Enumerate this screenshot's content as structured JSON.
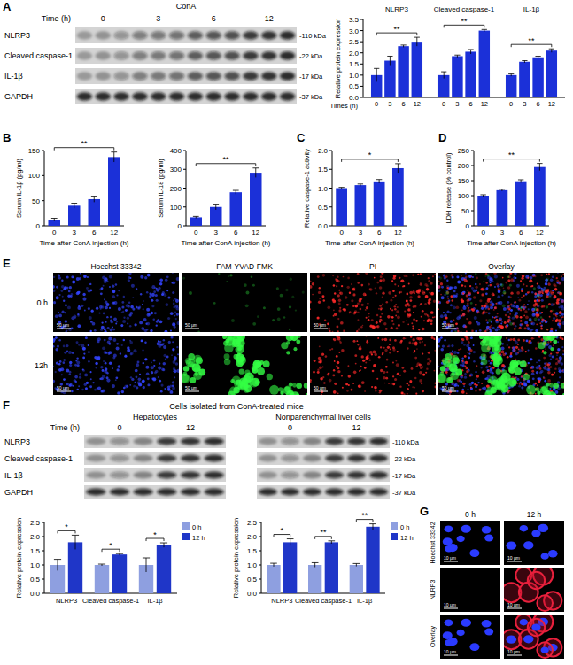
{
  "chart_data": [
    {
      "type": "bar",
      "panel": "A",
      "y_label": "Relative protein expression",
      "x_label": "Times (h)",
      "categories": [
        "NLRP3",
        "Cleaved caspase-1",
        "IL-1β"
      ],
      "series": [
        {
          "name": "0",
          "color": "#1b30d8",
          "values": [
            1.0,
            1.0,
            1.0
          ],
          "errors": [
            0.3,
            0.15,
            0.05
          ]
        },
        {
          "name": "3",
          "color": "#1b30d8",
          "values": [
            1.65,
            1.85,
            1.6
          ],
          "errors": [
            0.2,
            0.05,
            0.05
          ]
        },
        {
          "name": "6",
          "color": "#1b30d8",
          "values": [
            2.3,
            2.05,
            1.8
          ],
          "errors": [
            0.05,
            0.1,
            0.05
          ]
        },
        {
          "name": "12",
          "color": "#1b30d8",
          "values": [
            2.5,
            3.0,
            2.1
          ],
          "errors": [
            0.2,
            0.05,
            0.08
          ]
        }
      ],
      "ylim": [
        0,
        3.5
      ],
      "yticks": [
        {
          "value": 0,
          "label": "0.0"
        },
        0.5,
        {
          "value": 1,
          "label": "1.0"
        },
        1.5,
        {
          "value": 2,
          "label": "2.0"
        },
        2.5,
        {
          "value": 3,
          "label": "3.0"
        },
        3.5
      ],
      "annotations": [
        "**",
        "**",
        "**"
      ]
    },
    {
      "type": "bar",
      "panel": "B",
      "y_label": "Serum IL-1β (pg/ml)",
      "x_label": "Time after ConA injection (h)",
      "categories": [
        "0",
        "3",
        "6",
        "12"
      ],
      "values": [
        12,
        40,
        53,
        137
      ],
      "errors": [
        3,
        5,
        6,
        10
      ],
      "color": "#1b30d8",
      "ylim": [
        0,
        150
      ],
      "yticks": [
        0,
        50,
        100,
        150
      ],
      "annotations": [
        "**"
      ]
    },
    {
      "type": "bar",
      "y_label": "Serum IL-18 (pg/ml)",
      "x_label": "Time after ConA injection (h)",
      "categories": [
        "0",
        "3",
        "6",
        "12"
      ],
      "values": [
        45,
        100,
        178,
        282
      ],
      "errors": [
        5,
        15,
        10,
        25
      ],
      "color": "#1b30d8",
      "ylim": [
        0,
        400
      ],
      "yticks": [
        0,
        100,
        200,
        300,
        400
      ],
      "annotations": [
        "**"
      ]
    },
    {
      "type": "bar",
      "panel": "C",
      "y_label": "Relative caspase-1 activity",
      "x_label": "Time after ConA injection (h)",
      "categories": [
        "0",
        "3",
        "6",
        "12"
      ],
      "values": [
        1.0,
        1.08,
        1.18,
        1.53
      ],
      "errors": [
        0.02,
        0.03,
        0.05,
        0.12
      ],
      "color": "#1b30d8",
      "ylim": [
        0,
        2
      ],
      "yticks": [
        {
          "value": 0,
          "label": "0.0"
        },
        0.5,
        {
          "value": 1,
          "label": "1.0"
        },
        1.5,
        {
          "value": 2,
          "label": "2.0"
        }
      ],
      "annotations": [
        "*"
      ]
    },
    {
      "type": "bar",
      "panel": "D",
      "y_label": "LDH release (% control)",
      "x_label": "Time after ConA injection (h)",
      "categories": [
        "0",
        "3",
        "6",
        "12"
      ],
      "values": [
        100,
        118,
        148,
        195
      ],
      "errors": [
        3,
        3,
        5,
        12
      ],
      "color": "#1b30d8",
      "ylim": [
        0,
        250
      ],
      "yticks": [
        0,
        50,
        100,
        150,
        200,
        250
      ],
      "annotations": [
        "**"
      ]
    },
    {
      "type": "bar",
      "y_label": "Relative protein expression",
      "categories": [
        "NLRP3",
        "Cleaved caspase-1",
        "IL-1β"
      ],
      "legend": "right",
      "series": [
        {
          "name": "0 h",
          "color": "#8e9fe0",
          "values": [
            1.0,
            1.0,
            1.0
          ],
          "errors": [
            0.2,
            0.03,
            0.25
          ]
        },
        {
          "name": "12 h",
          "color": "#1f36c8",
          "values": [
            1.8,
            1.37,
            1.7
          ],
          "errors": [
            0.25,
            0.03,
            0.08
          ]
        }
      ],
      "ylim": [
        0,
        2.5
      ],
      "yticks": [
        {
          "value": 0,
          "label": "0.0"
        },
        0.5,
        {
          "value": 1,
          "label": "1.0"
        },
        1.5,
        {
          "value": 2,
          "label": "2.0"
        },
        2.5
      ],
      "annotations": [
        "*",
        "*",
        "*"
      ]
    },
    {
      "type": "bar",
      "y_label": "Relative protein expression",
      "categories": [
        "NLRP3",
        "Cleaved caspase-1",
        "IL-1β"
      ],
      "legend": "right",
      "series": [
        {
          "name": "0 h",
          "color": "#8e9fe0",
          "values": [
            1.0,
            1.0,
            1.0
          ],
          "errors": [
            0.06,
            0.08,
            0.05
          ]
        },
        {
          "name": "12 h",
          "color": "#1f36c8",
          "values": [
            1.8,
            1.8,
            2.35
          ],
          "errors": [
            0.12,
            0.05,
            0.1
          ]
        }
      ],
      "ylim": [
        0,
        2.5
      ],
      "yticks": [
        {
          "value": 0,
          "label": "0.0"
        },
        0.5,
        {
          "value": 1,
          "label": "1.0"
        },
        1.5,
        {
          "value": 2,
          "label": "2.0"
        },
        2.5
      ],
      "annotations": [
        "*",
        "**",
        "**"
      ]
    }
  ],
  "blot_panels": [
    {
      "title": "ConA",
      "time_label": "Time (h)",
      "lanes": [
        "0",
        "3",
        "6",
        "12"
      ],
      "rows": [
        "NLRP3",
        "Cleaved caspase-1",
        "IL-1β",
        "GAPDH"
      ],
      "sizes": [
        "-110 kDa",
        "-22 kDa",
        "-17 kDa",
        "-37 kDa"
      ]
    },
    {
      "panel": "F",
      "title": "Cells isolated from ConA-treated mice",
      "time_label": "Time (h)",
      "groups": [
        {
          "title": "Hepatocytes",
          "lanes": [
            "0",
            "12"
          ]
        },
        {
          "title": "Nonparenchymal liver cells",
          "lanes": [
            "0",
            "12"
          ]
        }
      ],
      "rows": [
        "NLRP3",
        "Cleaved caspase-1",
        "IL-1β",
        "GAPDH"
      ],
      "sizes": [
        "-110 kDa",
        "-22 kDa",
        "-17 kDa",
        "-37 kDa"
      ]
    }
  ],
  "image_panels": [
    {
      "panel": "E",
      "columns": [
        "Hoechst 33342",
        "FAM-YVAD-FMK",
        "PI",
        "Overlay"
      ],
      "rows": [
        "0 h",
        "12h"
      ],
      "scale_bar": "50 μm"
    },
    {
      "panel": "G",
      "columns": [
        "0 h",
        "12 h"
      ],
      "rows": [
        "Hoechst 33342",
        "NLRP3",
        "Overlay"
      ],
      "scale_bar": "10 μm"
    }
  ]
}
